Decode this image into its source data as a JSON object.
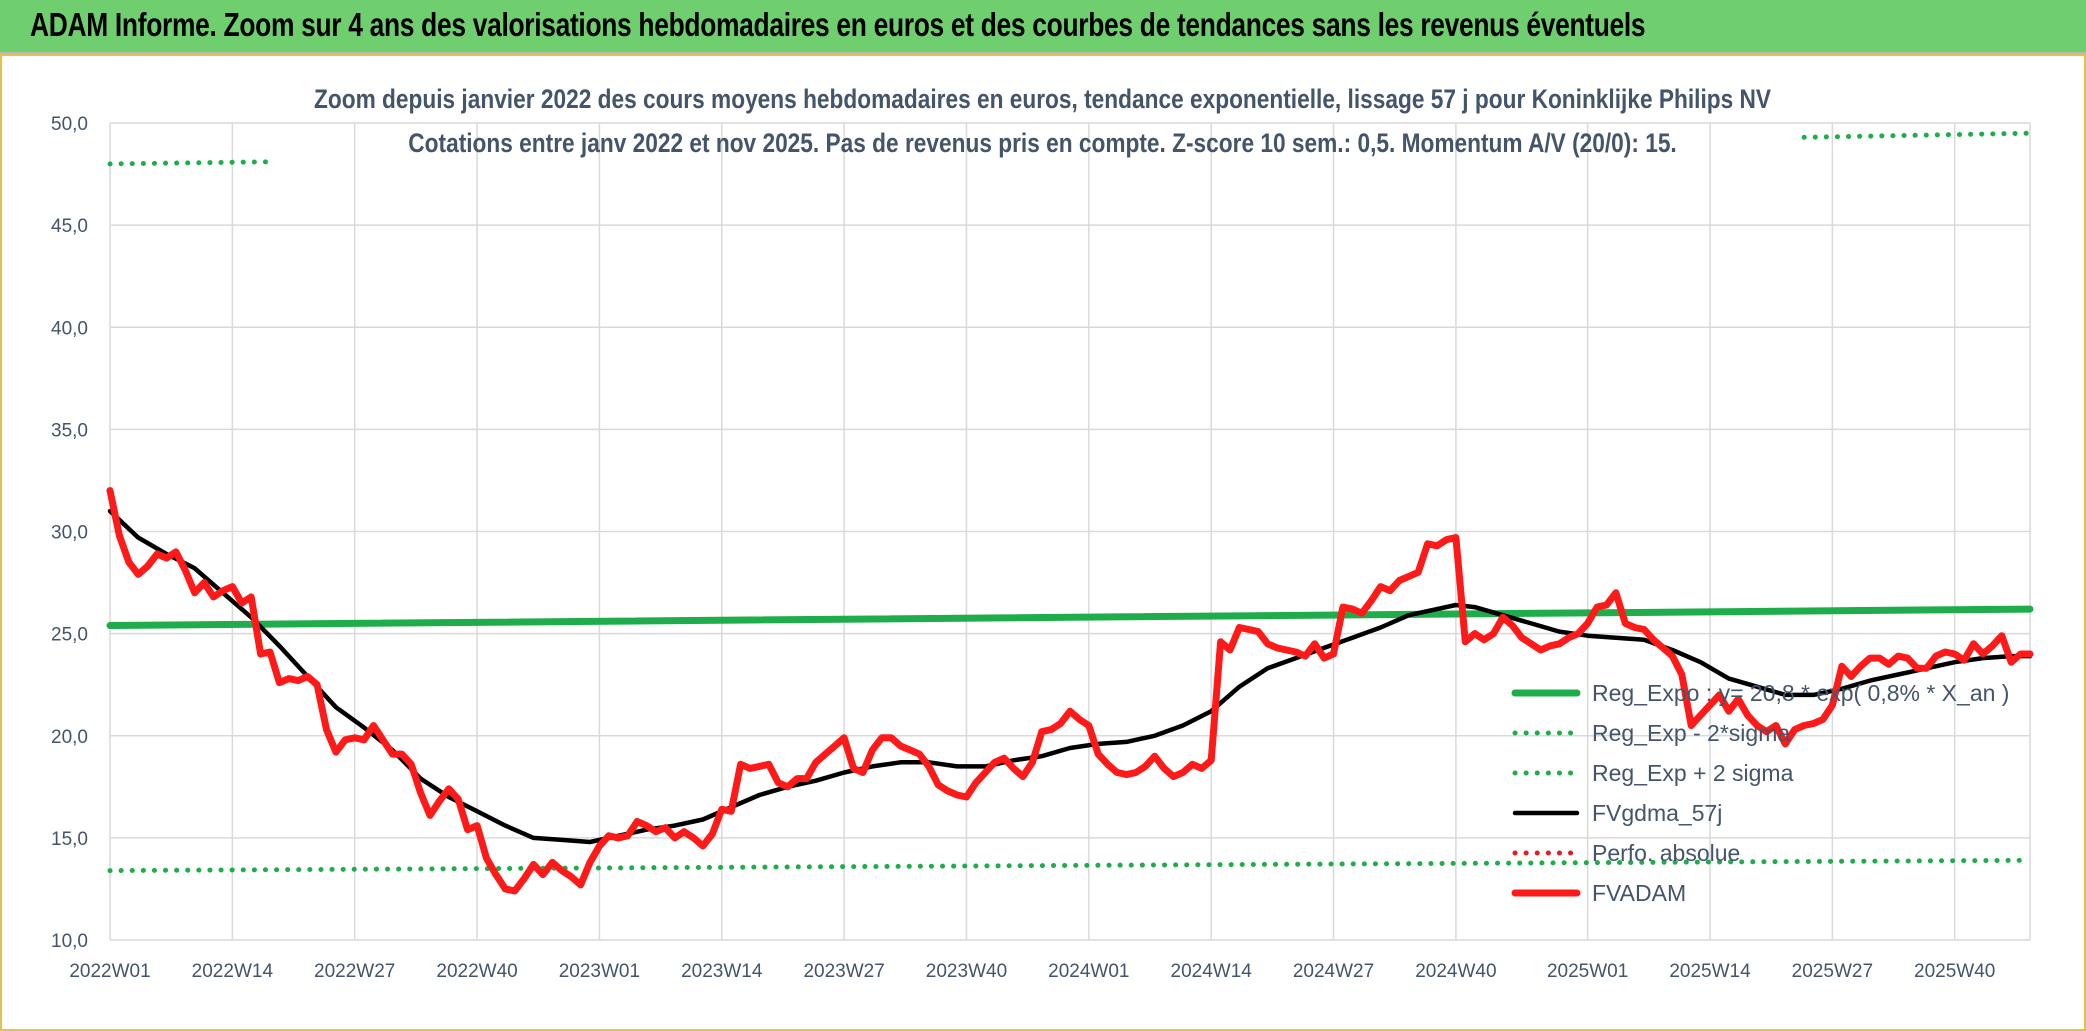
{
  "header": {
    "banner_title": "ADAM Informe. Zoom sur 4 ans des valorisations hebdomadaires en euros et des courbes de tendances sans les revenus éventuels"
  },
  "chart_data": {
    "type": "line",
    "title": "",
    "subtitle_lines": [
      "Zoom depuis janvier 2022 des cours moyens hebdomadaires en euros, tendance exponentielle, lissage 57 j pour Koninklijke Philips NV",
      "Cotations entre janv 2022 et nov 2025. Pas de revenus pris en compte. Z-score 10 sem.: 0,5. Momentum A/V (20/0): 15."
    ],
    "xlabel": "",
    "ylabel": "",
    "ylim": [
      10,
      50
    ],
    "y_ticks": [
      "10,0",
      "15,0",
      "20,0",
      "25,0",
      "30,0",
      "35,0",
      "40,0",
      "45,0",
      "50,0"
    ],
    "x_unit": "weeks since 2022W01 (weekly index)",
    "x_ticks": [
      {
        "x": 0,
        "label": "2022W01"
      },
      {
        "x": 13,
        "label": "2022W14"
      },
      {
        "x": 26,
        "label": "2022W27"
      },
      {
        "x": 39,
        "label": "2022W40"
      },
      {
        "x": 52,
        "label": "2023W01"
      },
      {
        "x": 65,
        "label": "2023W14"
      },
      {
        "x": 78,
        "label": "2023W27"
      },
      {
        "x": 91,
        "label": "2023W40"
      },
      {
        "x": 104,
        "label": "2024W01"
      },
      {
        "x": 117,
        "label": "2024W14"
      },
      {
        "x": 130,
        "label": "2024W27"
      },
      {
        "x": 143,
        "label": "2024W40"
      },
      {
        "x": 157,
        "label": "2025W01"
      },
      {
        "x": 170,
        "label": "2025W14"
      },
      {
        "x": 183,
        "label": "2025W27"
      },
      {
        "x": 196,
        "label": "2025W40"
      }
    ],
    "xlim": [
      0,
      204
    ],
    "grid": true,
    "legend_position": "bottom-right",
    "series": [
      {
        "name": "Reg_Expo : y= 20,8 * exp( 0,8% * X_an )",
        "legend_label": "Reg_Expo : y= 20,8 * exp( 0,8% * X_an )",
        "color": "#1fad4b",
        "style": "solid-thick",
        "points": [
          [
            0,
            25.4
          ],
          [
            204,
            26.2
          ]
        ]
      },
      {
        "name": "Reg_Exp - 2*sigma",
        "legend_label": "Reg_Exp - 2*sigma",
        "color": "#1fad4b",
        "style": "dotted",
        "points": [
          [
            0,
            13.4
          ],
          [
            204,
            13.9
          ]
        ]
      },
      {
        "name": "Reg_Exp + 2 sigma",
        "legend_label": "Reg_Exp + 2 sigma",
        "color": "#1fad4b",
        "style": "dotted",
        "points": [
          [
            0,
            48.0
          ],
          [
            17,
            48.1
          ]
        ],
        "points_right": [
          [
            180,
            49.3
          ],
          [
            204,
            49.5
          ]
        ]
      },
      {
        "name": "FVgdma_57j",
        "legend_label": "FVgdma_57j",
        "color": "#000000",
        "style": "solid",
        "points": [
          [
            0,
            31.0
          ],
          [
            3,
            29.7
          ],
          [
            6,
            28.9
          ],
          [
            9,
            28.2
          ],
          [
            12,
            27.0
          ],
          [
            15,
            25.8
          ],
          [
            18,
            24.4
          ],
          [
            21,
            22.9
          ],
          [
            24,
            21.4
          ],
          [
            27,
            20.4
          ],
          [
            30,
            19.3
          ],
          [
            33,
            17.9
          ],
          [
            36,
            17.0
          ],
          [
            39,
            16.3
          ],
          [
            42,
            15.6
          ],
          [
            45,
            15.0
          ],
          [
            48,
            14.9
          ],
          [
            51,
            14.8
          ],
          [
            54,
            15.1
          ],
          [
            57,
            15.4
          ],
          [
            60,
            15.6
          ],
          [
            63,
            15.9
          ],
          [
            66,
            16.5
          ],
          [
            69,
            17.1
          ],
          [
            72,
            17.5
          ],
          [
            75,
            17.8
          ],
          [
            78,
            18.2
          ],
          [
            81,
            18.5
          ],
          [
            84,
            18.7
          ],
          [
            87,
            18.7
          ],
          [
            90,
            18.5
          ],
          [
            93,
            18.5
          ],
          [
            96,
            18.8
          ],
          [
            99,
            19.0
          ],
          [
            102,
            19.4
          ],
          [
            105,
            19.6
          ],
          [
            108,
            19.7
          ],
          [
            111,
            20.0
          ],
          [
            114,
            20.5
          ],
          [
            117,
            21.2
          ],
          [
            120,
            22.4
          ],
          [
            123,
            23.3
          ],
          [
            126,
            23.8
          ],
          [
            129,
            24.3
          ],
          [
            132,
            24.8
          ],
          [
            135,
            25.3
          ],
          [
            138,
            25.9
          ],
          [
            141,
            26.2
          ],
          [
            143,
            26.4
          ],
          [
            145,
            26.3
          ],
          [
            148,
            25.9
          ],
          [
            151,
            25.5
          ],
          [
            154,
            25.1
          ],
          [
            157,
            24.9
          ],
          [
            160,
            24.8
          ],
          [
            163,
            24.7
          ],
          [
            166,
            24.2
          ],
          [
            169,
            23.6
          ],
          [
            172,
            22.8
          ],
          [
            175,
            22.4
          ],
          [
            178,
            22.0
          ],
          [
            181,
            22.0
          ],
          [
            184,
            22.3
          ],
          [
            187,
            22.7
          ],
          [
            190,
            23.0
          ],
          [
            193,
            23.3
          ],
          [
            196,
            23.6
          ],
          [
            199,
            23.8
          ],
          [
            202,
            23.9
          ],
          [
            204,
            23.9
          ]
        ]
      },
      {
        "name": "Perfo. absolue",
        "legend_label": "Perfo. absolue",
        "color": "#e02020",
        "style": "dotted",
        "points": []
      },
      {
        "name": "FVADAM",
        "legend_label": "FVADAM",
        "color": "#ff1a1a",
        "style": "solid-thick",
        "points": [
          [
            0,
            32.0
          ],
          [
            1,
            29.8
          ],
          [
            2,
            28.5
          ],
          [
            3,
            27.9
          ],
          [
            4,
            28.3
          ],
          [
            5,
            28.9
          ],
          [
            6,
            28.7
          ],
          [
            7,
            29.0
          ],
          [
            8,
            28.1
          ],
          [
            9,
            27.0
          ],
          [
            10,
            27.5
          ],
          [
            11,
            26.8
          ],
          [
            12,
            27.1
          ],
          [
            13,
            27.3
          ],
          [
            14,
            26.5
          ],
          [
            15,
            26.8
          ],
          [
            16,
            24.0
          ],
          [
            17,
            24.1
          ],
          [
            18,
            22.6
          ],
          [
            19,
            22.8
          ],
          [
            20,
            22.7
          ],
          [
            21,
            22.9
          ],
          [
            22,
            22.5
          ],
          [
            23,
            20.3
          ],
          [
            24,
            19.2
          ],
          [
            25,
            19.8
          ],
          [
            26,
            19.9
          ],
          [
            27,
            19.8
          ],
          [
            28,
            20.5
          ],
          [
            29,
            19.8
          ],
          [
            30,
            19.1
          ],
          [
            31,
            19.1
          ],
          [
            32,
            18.6
          ],
          [
            33,
            17.2
          ],
          [
            34,
            16.1
          ],
          [
            35,
            16.8
          ],
          [
            36,
            17.4
          ],
          [
            37,
            16.9
          ],
          [
            38,
            15.4
          ],
          [
            39,
            15.6
          ],
          [
            40,
            14.0
          ],
          [
            41,
            13.2
          ],
          [
            42,
            12.5
          ],
          [
            43,
            12.4
          ],
          [
            44,
            13.0
          ],
          [
            45,
            13.7
          ],
          [
            46,
            13.2
          ],
          [
            47,
            13.8
          ],
          [
            48,
            13.4
          ],
          [
            49,
            13.1
          ],
          [
            50,
            12.7
          ],
          [
            51,
            13.8
          ],
          [
            52,
            14.6
          ],
          [
            53,
            15.1
          ],
          [
            54,
            15.0
          ],
          [
            55,
            15.1
          ],
          [
            56,
            15.8
          ],
          [
            57,
            15.6
          ],
          [
            58,
            15.3
          ],
          [
            59,
            15.5
          ],
          [
            60,
            15.0
          ],
          [
            61,
            15.3
          ],
          [
            62,
            15.0
          ],
          [
            63,
            14.6
          ],
          [
            64,
            15.2
          ],
          [
            65,
            16.4
          ],
          [
            66,
            16.3
          ],
          [
            67,
            18.6
          ],
          [
            68,
            18.4
          ],
          [
            69,
            18.5
          ],
          [
            70,
            18.6
          ],
          [
            71,
            17.7
          ],
          [
            72,
            17.5
          ],
          [
            73,
            17.9
          ],
          [
            74,
            17.9
          ],
          [
            75,
            18.7
          ],
          [
            76,
            19.1
          ],
          [
            77,
            19.5
          ],
          [
            78,
            19.9
          ],
          [
            79,
            18.4
          ],
          [
            80,
            18.2
          ],
          [
            81,
            19.3
          ],
          [
            82,
            19.9
          ],
          [
            83,
            19.9
          ],
          [
            84,
            19.5
          ],
          [
            85,
            19.3
          ],
          [
            86,
            19.1
          ],
          [
            87,
            18.5
          ],
          [
            88,
            17.6
          ],
          [
            89,
            17.3
          ],
          [
            90,
            17.1
          ],
          [
            91,
            17.0
          ],
          [
            92,
            17.7
          ],
          [
            93,
            18.2
          ],
          [
            94,
            18.7
          ],
          [
            95,
            18.9
          ],
          [
            96,
            18.4
          ],
          [
            97,
            18.0
          ],
          [
            98,
            18.7
          ],
          [
            99,
            20.2
          ],
          [
            100,
            20.3
          ],
          [
            101,
            20.6
          ],
          [
            102,
            21.2
          ],
          [
            103,
            20.8
          ],
          [
            104,
            20.5
          ],
          [
            105,
            19.1
          ],
          [
            106,
            18.6
          ],
          [
            107,
            18.2
          ],
          [
            108,
            18.1
          ],
          [
            109,
            18.2
          ],
          [
            110,
            18.5
          ],
          [
            111,
            19.0
          ],
          [
            112,
            18.4
          ],
          [
            113,
            18.0
          ],
          [
            114,
            18.2
          ],
          [
            115,
            18.6
          ],
          [
            116,
            18.4
          ],
          [
            117,
            18.8
          ],
          [
            118,
            24.6
          ],
          [
            119,
            24.2
          ],
          [
            120,
            25.3
          ],
          [
            121,
            25.2
          ],
          [
            122,
            25.1
          ],
          [
            123,
            24.5
          ],
          [
            124,
            24.3
          ],
          [
            125,
            24.2
          ],
          [
            126,
            24.1
          ],
          [
            127,
            23.9
          ],
          [
            128,
            24.5
          ],
          [
            129,
            23.8
          ],
          [
            130,
            24.0
          ],
          [
            131,
            26.3
          ],
          [
            132,
            26.2
          ],
          [
            133,
            26.0
          ],
          [
            134,
            26.6
          ],
          [
            135,
            27.3
          ],
          [
            136,
            27.1
          ],
          [
            137,
            27.6
          ],
          [
            138,
            27.8
          ],
          [
            139,
            28.0
          ],
          [
            140,
            29.4
          ],
          [
            141,
            29.3
          ],
          [
            142,
            29.6
          ],
          [
            143,
            29.7
          ],
          [
            144,
            24.6
          ],
          [
            145,
            25.0
          ],
          [
            146,
            24.7
          ],
          [
            147,
            25.0
          ],
          [
            148,
            25.8
          ],
          [
            149,
            25.4
          ],
          [
            150,
            24.8
          ],
          [
            151,
            24.5
          ],
          [
            152,
            24.2
          ],
          [
            153,
            24.4
          ],
          [
            154,
            24.5
          ],
          [
            155,
            24.8
          ],
          [
            156,
            25.0
          ],
          [
            157,
            25.5
          ],
          [
            158,
            26.3
          ],
          [
            159,
            26.4
          ],
          [
            160,
            27.0
          ],
          [
            161,
            25.5
          ],
          [
            162,
            25.3
          ],
          [
            163,
            25.2
          ],
          [
            164,
            24.7
          ],
          [
            165,
            24.3
          ],
          [
            166,
            23.9
          ],
          [
            167,
            23.0
          ],
          [
            168,
            20.5
          ],
          [
            169,
            21.0
          ],
          [
            170,
            21.5
          ],
          [
            171,
            22.0
          ],
          [
            172,
            21.2
          ],
          [
            173,
            21.8
          ],
          [
            174,
            21.0
          ],
          [
            175,
            20.5
          ],
          [
            176,
            20.2
          ],
          [
            177,
            20.5
          ],
          [
            178,
            19.6
          ],
          [
            179,
            20.3
          ],
          [
            180,
            20.5
          ],
          [
            181,
            20.6
          ],
          [
            182,
            20.8
          ],
          [
            183,
            21.5
          ],
          [
            184,
            23.4
          ],
          [
            185,
            22.9
          ],
          [
            186,
            23.4
          ],
          [
            187,
            23.8
          ],
          [
            188,
            23.8
          ],
          [
            189,
            23.5
          ],
          [
            190,
            23.9
          ],
          [
            191,
            23.8
          ],
          [
            192,
            23.3
          ],
          [
            193,
            23.3
          ],
          [
            194,
            23.9
          ],
          [
            195,
            24.1
          ],
          [
            196,
            24.0
          ],
          [
            197,
            23.7
          ],
          [
            198,
            24.5
          ],
          [
            199,
            24.0
          ],
          [
            200,
            24.4
          ],
          [
            201,
            24.9
          ],
          [
            202,
            23.6
          ],
          [
            203,
            24.0
          ],
          [
            204,
            24.0
          ]
        ]
      }
    ]
  }
}
